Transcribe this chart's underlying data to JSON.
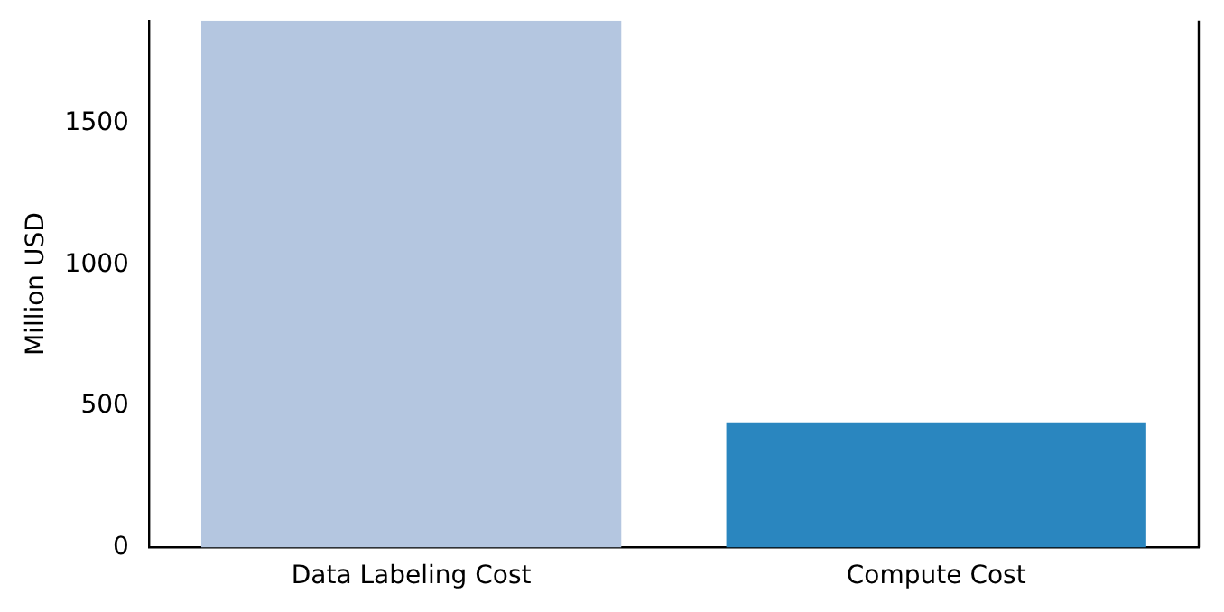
{
  "chart_data": {
    "type": "bar",
    "ylabel": "Million USD",
    "categories": [
      "Data Labeling Cost",
      "Compute Cost"
    ],
    "values": [
      1865,
      440
    ],
    "colors": [
      "#b4c6e0",
      "#2a86bf"
    ],
    "ylim": [
      0,
      1865
    ],
    "yticks": [
      0,
      500,
      1000,
      1500
    ],
    "grid": false,
    "legend": false
  }
}
